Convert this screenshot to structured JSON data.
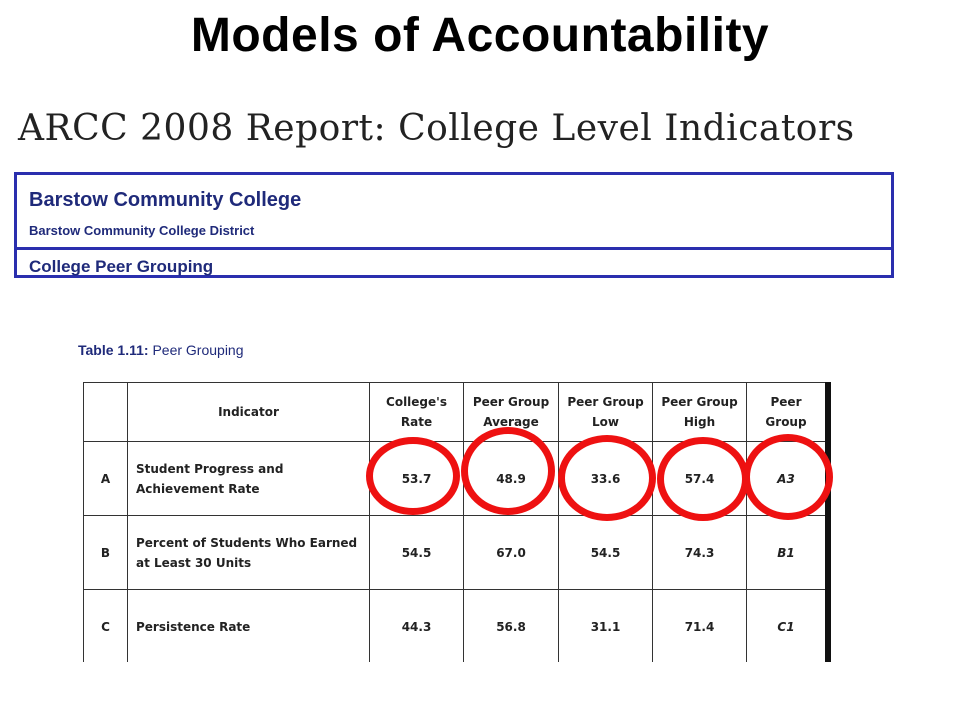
{
  "slide": {
    "title": "Models of Accountability"
  },
  "report": {
    "heading": "ARCC 2008 Report:  College Level Indicators",
    "college_name": "Barstow Community College",
    "district_name": "Barstow Community College District",
    "section_heading": "College Peer Grouping"
  },
  "table": {
    "caption_label": "Table 1.11:",
    "caption_title": "Peer Grouping",
    "headers": [
      "",
      "Indicator",
      "College's Rate",
      "Peer Group Average",
      "Peer Group Low",
      "Peer Group High",
      "Peer Group"
    ],
    "rows": [
      {
        "letter": "A",
        "indicator": "Student Progress and Achievement Rate",
        "rate": "53.7",
        "average": "48.9",
        "low": "33.6",
        "high": "57.4",
        "group": "A3"
      },
      {
        "letter": "B",
        "indicator": "Percent of Students Who Earned at Least 30 Units",
        "rate": "54.5",
        "average": "67.0",
        "low": "54.5",
        "high": "74.3",
        "group": "B1"
      },
      {
        "letter": "C",
        "indicator": "Persistence Rate",
        "rate": "44.3",
        "average": "56.8",
        "low": "31.1",
        "high": "71.4",
        "group": "C1"
      }
    ]
  },
  "annotation_color": "#ee1111",
  "accent_color": "#2a2fae"
}
